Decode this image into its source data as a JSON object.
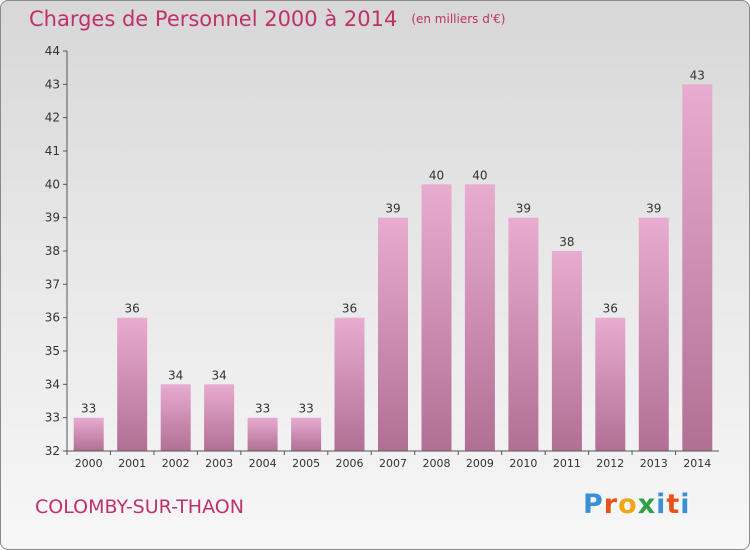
{
  "header": {
    "title": "Charges de Personnel 2000 à 2014",
    "unit": "(en milliers d'€)"
  },
  "footer": {
    "commune": "COLOMBY-SUR-THAON",
    "logo_letters": [
      "P",
      "r",
      "o",
      "x",
      "i",
      "t",
      "i"
    ]
  },
  "colors": {
    "title": "#c0306b",
    "bar_top": "#e8acd0",
    "bar_bottom": "#b26f94",
    "axis": "#555555"
  },
  "chart_data": {
    "type": "bar",
    "title": "Charges de Personnel 2000 à 2014",
    "subtitle": "(en milliers d'€)",
    "xlabel": "",
    "ylabel": "",
    "categories": [
      "2000",
      "2001",
      "2002",
      "2003",
      "2004",
      "2005",
      "2006",
      "2007",
      "2008",
      "2009",
      "2010",
      "2011",
      "2012",
      "2013",
      "2014"
    ],
    "values": [
      33,
      36,
      34,
      34,
      33,
      33,
      36,
      39,
      40,
      40,
      39,
      38,
      36,
      39,
      43
    ],
    "ylim": [
      32,
      44
    ],
    "yticks": [
      32,
      33,
      34,
      35,
      36,
      37,
      38,
      39,
      40,
      41,
      42,
      43,
      44
    ],
    "grid": false,
    "legend": "none"
  }
}
